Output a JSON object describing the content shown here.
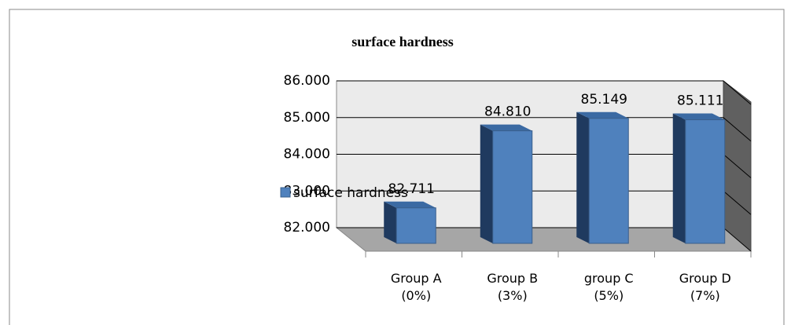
{
  "chart_data": {
    "type": "bar3d",
    "title": "surface hardness",
    "categories": [
      "Group A (0%)",
      "Group B (3%)",
      "group C (5%)",
      "Group D (7%)"
    ],
    "series": [
      {
        "name": "surface hardness",
        "color": "#4f81bd",
        "values": [
          82.711,
          84.81,
          85.149,
          85.111
        ],
        "value_labels": [
          "82.711",
          "84.810",
          "85.149",
          "85.111"
        ]
      }
    ],
    "ylim": [
      82,
      86
    ],
    "yticks": [
      {
        "value": 82,
        "label": "82.000"
      },
      {
        "value": 83,
        "label": "83.000"
      },
      {
        "value": 84,
        "label": "84.000"
      },
      {
        "value": 85,
        "label": "85.000"
      },
      {
        "value": 86,
        "label": "86.000"
      }
    ],
    "grid": true,
    "legend": "left"
  }
}
